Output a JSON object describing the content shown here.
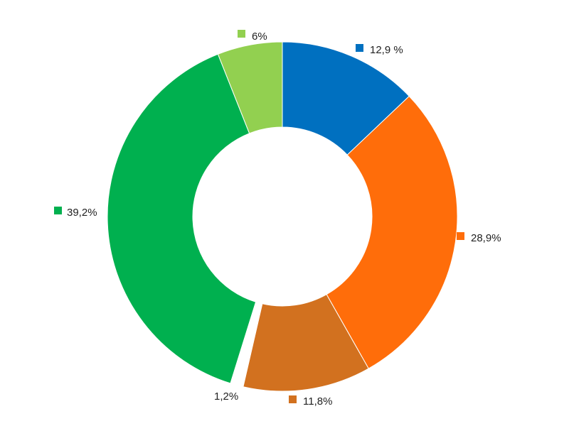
{
  "chart_data": {
    "type": "pie",
    "variant": "donut",
    "title": "",
    "slices": [
      {
        "label": "12,9 %",
        "value": 12.9,
        "color": "#0070C0"
      },
      {
        "label": "28,9%",
        "value": 28.9,
        "color": "#FF6D0A"
      },
      {
        "label": "11,8%",
        "value": 11.8,
        "color": "#D2711F"
      },
      {
        "label": "1,2%",
        "value": 1.2,
        "color": "#FFFFFF"
      },
      {
        "label": "39,2%",
        "value": 39.2,
        "color": "#00B04F"
      },
      {
        "label": "6%",
        "value": 6.0,
        "color": "#92D050"
      }
    ],
    "legend": "none"
  }
}
